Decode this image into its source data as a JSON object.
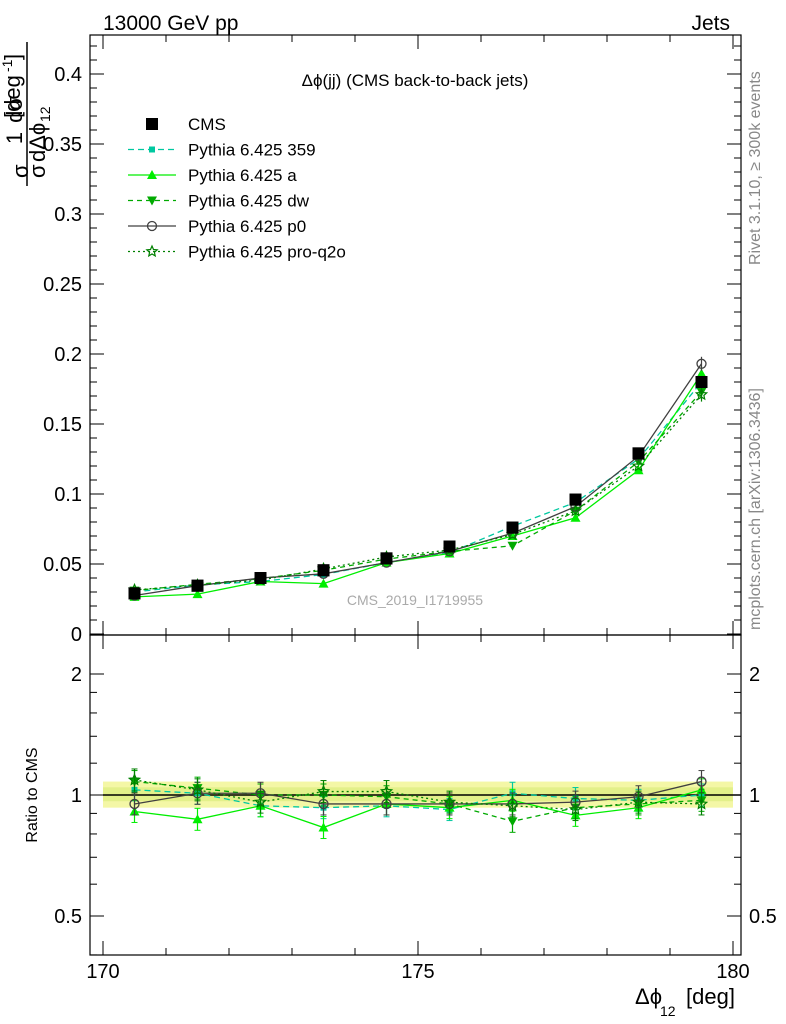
{
  "header": {
    "left": "13000 GeV pp",
    "right": "Jets"
  },
  "side_text": {
    "rivet": "Rivet 3.1.10, ≥ 300k events",
    "mcplots": "mcplots.cern.ch [arXiv:1306.3436]"
  },
  "watermark": "CMS_2019_I1719955",
  "chart_data": {
    "type": "line",
    "title": "Δϕ(jj) (CMS back-to-back jets)",
    "xlabel": "Δϕ",
    "xlabel_sub": "12",
    "xlabel_unit": "[deg]",
    "ylabel": "1/σ dσ/dΔϕ₁₂ [deg⁻¹]",
    "ratio_ylabel": "Ratio to CMS",
    "xlim": [
      169.8,
      180.3
    ],
    "ylim": [
      0,
      0.43
    ],
    "ratio_ylim": [
      0.4,
      2.35
    ],
    "x_ticks": [
      170,
      175,
      180
    ],
    "y_ticks": [
      "0",
      "0.05",
      "0.1",
      "0.15",
      "0.2",
      "0.25",
      "0.3",
      "0.35",
      "0.4"
    ],
    "ratio_ticks": [
      "0.5",
      "1",
      "2"
    ],
    "x": [
      170.5,
      171.5,
      172.5,
      173.5,
      174.5,
      175.5,
      176.5,
      177.5,
      178.5,
      179.5
    ],
    "series": [
      {
        "name": "CMS",
        "color": "#000000",
        "marker": "square",
        "dash": "none",
        "values": [
          0.029,
          0.0345,
          0.04,
          0.0455,
          0.054,
          0.0625,
          0.076,
          0.096,
          0.129,
          0.18
        ]
      },
      {
        "name": "Pythia 6.425 359",
        "color": "#00c8a0",
        "marker": "small-square",
        "dash": "6,4",
        "values": [
          0.03,
          0.035,
          0.0375,
          0.0425,
          0.051,
          0.058,
          0.077,
          0.094,
          0.125,
          0.18
        ],
        "ratio": [
          1.03,
          1.01,
          0.94,
          0.93,
          0.94,
          0.92,
          1.01,
          0.98,
          0.97,
          1.0
        ]
      },
      {
        "name": "Pythia 6.425 a",
        "color": "#00ee00",
        "marker": "triangle-up",
        "dash": "none",
        "values": [
          0.0265,
          0.0285,
          0.0375,
          0.036,
          0.051,
          0.0575,
          0.07,
          0.083,
          0.117,
          0.186
        ],
        "ratio": [
          0.91,
          0.87,
          0.94,
          0.83,
          0.95,
          0.93,
          0.97,
          0.89,
          0.93,
          1.03
        ]
      },
      {
        "name": "Pythia 6.425 dw",
        "color": "#00aa00",
        "marker": "triangle-down",
        "dash": "5,4",
        "values": [
          0.031,
          0.0355,
          0.0395,
          0.0455,
          0.0535,
          0.059,
          0.063,
          0.088,
          0.123,
          0.173
        ],
        "ratio": [
          1.08,
          1.04,
          1.0,
          1.0,
          0.99,
          0.95,
          0.86,
          0.93,
          0.95,
          0.97
        ]
      },
      {
        "name": "Pythia 6.425 p0",
        "color": "#404040",
        "marker": "open-circle",
        "dash": "none",
        "values": [
          0.0275,
          0.0345,
          0.04,
          0.043,
          0.051,
          0.059,
          0.072,
          0.091,
          0.127,
          0.193
        ],
        "ratio": [
          0.95,
          1.01,
          1.01,
          0.95,
          0.95,
          0.95,
          0.95,
          0.96,
          0.99,
          1.08
        ]
      },
      {
        "name": "Pythia 6.425 pro-q2o",
        "color": "#008000",
        "marker": "star",
        "dash": "2,3",
        "values": [
          0.0315,
          0.035,
          0.0385,
          0.0465,
          0.055,
          0.06,
          0.071,
          0.088,
          0.12,
          0.171
        ],
        "ratio": [
          1.09,
          1.03,
          0.96,
          1.02,
          1.02,
          0.96,
          0.94,
          0.92,
          0.96,
          0.95
        ]
      }
    ]
  }
}
